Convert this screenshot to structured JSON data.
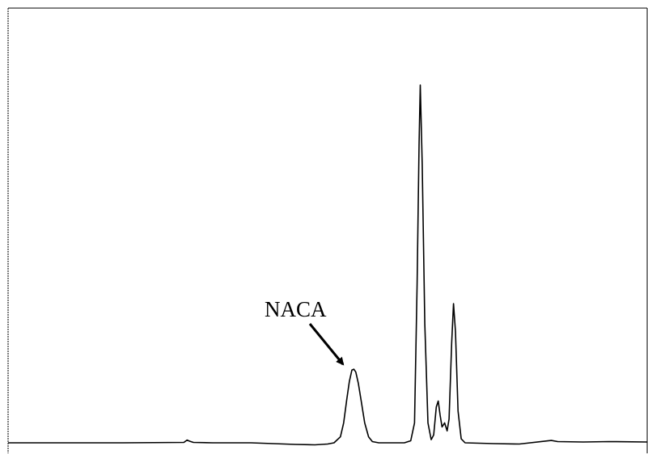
{
  "chart_data": {
    "type": "line",
    "title": "",
    "xlabel": "",
    "ylabel": "",
    "xlim": [
      0,
      100
    ],
    "ylim": [
      0,
      100
    ],
    "grid": false,
    "legend": false,
    "line_color": "#000000",
    "series": [
      {
        "points": [
          [
            0.0,
            0.0
          ],
          [
            10.0,
            0.0
          ],
          [
            18.0,
            0.0
          ],
          [
            27.5,
            0.1
          ],
          [
            28.0,
            0.7
          ],
          [
            28.4,
            0.4
          ],
          [
            29.0,
            0.1
          ],
          [
            32.0,
            0.0
          ],
          [
            38.0,
            0.0
          ],
          [
            45.0,
            -0.4
          ],
          [
            48.0,
            -0.5
          ],
          [
            50.0,
            -0.3
          ],
          [
            51.0,
            0.0
          ],
          [
            52.0,
            1.5
          ],
          [
            52.5,
            5.0
          ],
          [
            53.0,
            11.0
          ],
          [
            53.4,
            15.5
          ],
          [
            53.8,
            18.3
          ],
          [
            54.1,
            18.5
          ],
          [
            54.4,
            17.8
          ],
          [
            54.8,
            15.0
          ],
          [
            55.3,
            10.0
          ],
          [
            55.8,
            5.0
          ],
          [
            56.4,
            1.5
          ],
          [
            57.0,
            0.3
          ],
          [
            58.0,
            0.0
          ],
          [
            62.0,
            0.0
          ],
          [
            63.0,
            0.5
          ],
          [
            63.6,
            5.0
          ],
          [
            64.0,
            40.0
          ],
          [
            64.3,
            75.0
          ],
          [
            64.5,
            90.0
          ],
          [
            64.8,
            70.0
          ],
          [
            65.2,
            30.0
          ],
          [
            65.7,
            5.0
          ],
          [
            66.2,
            0.8
          ],
          [
            66.6,
            2.0
          ],
          [
            67.0,
            9.0
          ],
          [
            67.3,
            10.5
          ],
          [
            67.6,
            7.0
          ],
          [
            67.9,
            4.0
          ],
          [
            68.3,
            5.0
          ],
          [
            68.7,
            3.0
          ],
          [
            69.0,
            6.0
          ],
          [
            69.4,
            25.0
          ],
          [
            69.7,
            35.0
          ],
          [
            70.0,
            28.0
          ],
          [
            70.4,
            8.0
          ],
          [
            70.9,
            1.0
          ],
          [
            71.5,
            0.0
          ],
          [
            76.0,
            -0.2
          ],
          [
            80.0,
            -0.3
          ],
          [
            85.0,
            0.6
          ],
          [
            86.0,
            0.3
          ],
          [
            90.0,
            0.2
          ],
          [
            94.0,
            0.3
          ],
          [
            100.0,
            0.2
          ]
        ]
      }
    ],
    "annotations": [
      {
        "text": "NACA",
        "arrow_to": [
          53.4,
          16.5
        ]
      }
    ]
  }
}
